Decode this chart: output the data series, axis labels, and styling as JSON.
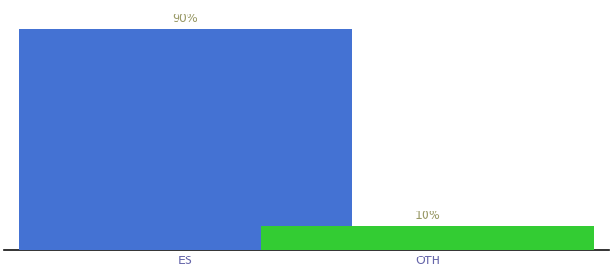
{
  "categories": [
    "ES",
    "OTH"
  ],
  "values": [
    90,
    10
  ],
  "bar_colors": [
    "#4472d3",
    "#33cc33"
  ],
  "label_texts": [
    "90%",
    "10%"
  ],
  "background_color": "#ffffff",
  "text_color": "#999966",
  "axis_label_color": "#6666aa",
  "ylim": [
    0,
    100
  ],
  "bar_width": 0.55,
  "label_fontsize": 9,
  "tick_fontsize": 9,
  "figsize": [
    6.8,
    3.0
  ],
  "dpi": 100,
  "x_positions": [
    0.3,
    0.7
  ]
}
